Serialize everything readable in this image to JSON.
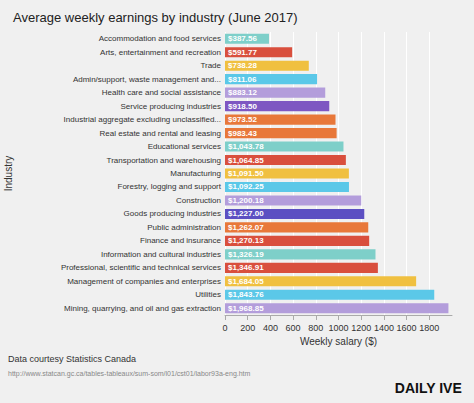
{
  "chart_data": {
    "type": "bar",
    "orientation": "horizontal",
    "title": "Average weekly earnings by industry (June 2017)",
    "xlabel": "Weekly salary ($)",
    "ylabel": "Industry",
    "categories": [
      "Accommodation and food services",
      "Arts, entertainment and recreation",
      "Trade",
      "Admin/support, waste management and...",
      "Health care and social assistance",
      "Service producing industries",
      "Industrial aggregate excluding unclassified...",
      "Real estate and rental and leasing",
      "Educational services",
      "Transportation and warehousing",
      "Manufacturing",
      "Forestry, logging and support",
      "Construction",
      "Goods producing industries",
      "Public administration",
      "Finance and insurance",
      "Information and cultural industries",
      "Professional, scientific and technical services",
      "Management of companies and enterprises",
      "Utilities",
      "Mining, quarrying, and oil and gas extraction"
    ],
    "values": [
      387.56,
      591.77,
      738.28,
      811.06,
      883.12,
      918.5,
      973.52,
      983.43,
      1043.78,
      1064.85,
      1091.5,
      1092.25,
      1200.18,
      1227.0,
      1262.07,
      1270.13,
      1326.19,
      1346.91,
      1684.05,
      1843.76,
      1968.85
    ],
    "value_labels": [
      "$387.56",
      "$591.77",
      "$738.28",
      "$811.06",
      "$883.12",
      "$918.50",
      "$973.52",
      "$983.43",
      "$1,043.78",
      "$1,064.85",
      "$1,091.50",
      "$1,092.25",
      "$1,200.18",
      "$1,227.00",
      "$1,262.07",
      "$1,270.13",
      "$1,326.19",
      "$1,346.91",
      "$1,684.05",
      "$1,843.76",
      "$1,968.85"
    ],
    "colors": [
      "#7ecfc9",
      "#d94f3d",
      "#f0c040",
      "#5bc8e8",
      "#b39ddb",
      "#7e57c2",
      "#e8783a",
      "#e8783a",
      "#7ecfc9",
      "#d94f3d",
      "#f0c040",
      "#5bc8e8",
      "#b39ddb",
      "#5c4fc2",
      "#e8783a",
      "#d94f3d",
      "#7ecfc9",
      "#d94f3d",
      "#f0c040",
      "#5bc8e8",
      "#b39ddb"
    ],
    "xlim": [
      0,
      2000
    ],
    "xticks": [
      0,
      200,
      400,
      600,
      800,
      1000,
      1200,
      1400,
      1600,
      1800
    ],
    "grid": true,
    "data_labels": true,
    "annotations": [
      "Data courtesy Statistics Canada",
      "http://www.statcan.gc.ca/tables-tableaux/sum-som/l01/cst01/labor93a-eng.htm",
      "DAILY",
      "IVE"
    ]
  }
}
